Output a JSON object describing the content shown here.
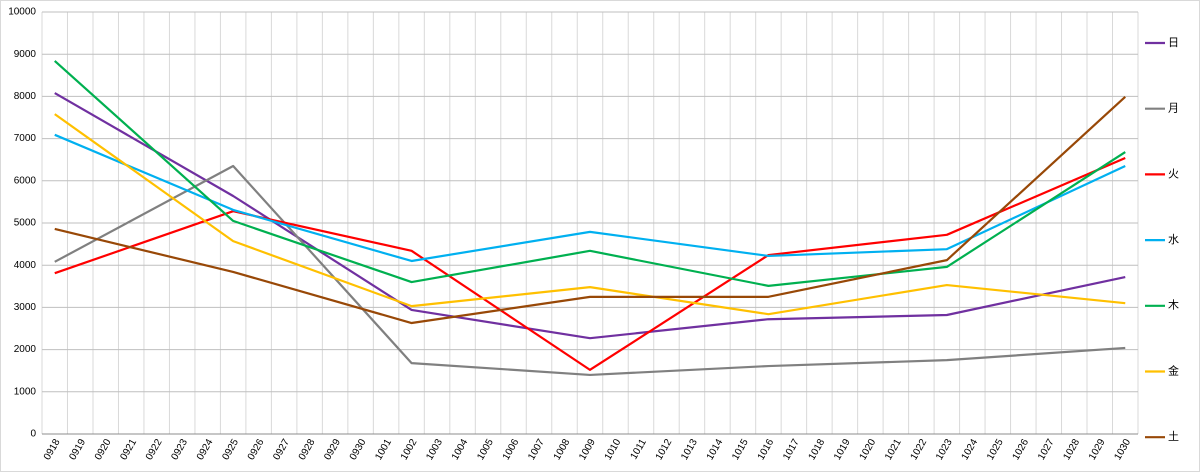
{
  "chart_data": {
    "type": "line",
    "categories": [
      "0918",
      "0919",
      "0920",
      "0921",
      "0922",
      "0923",
      "0924",
      "0925",
      "0926",
      "0927",
      "0928",
      "0929",
      "0930",
      "1001",
      "1002",
      "1003",
      "1004",
      "1005",
      "1006",
      "1007",
      "1008",
      "1009",
      "1010",
      "1011",
      "1012",
      "1013",
      "1014",
      "1015",
      "1016",
      "1017",
      "1018",
      "1019",
      "1020",
      "1021",
      "1022",
      "1023",
      "1024",
      "1025",
      "1026",
      "1027",
      "1028",
      "1029",
      "1030"
    ],
    "series": [
      {
        "name": "日",
        "color": "#7030a0",
        "values": [
          8080,
          null,
          null,
          null,
          null,
          null,
          null,
          5640,
          null,
          null,
          null,
          null,
          null,
          null,
          2940,
          null,
          null,
          null,
          null,
          null,
          null,
          2270,
          null,
          null,
          null,
          null,
          null,
          null,
          2720,
          null,
          null,
          null,
          null,
          null,
          null,
          2820,
          null,
          null,
          null,
          null,
          null,
          null,
          3720
        ]
      },
      {
        "name": "月",
        "color": "#808080",
        "values": [
          4080,
          null,
          null,
          null,
          null,
          null,
          null,
          6350,
          null,
          null,
          null,
          null,
          null,
          null,
          1680,
          null,
          null,
          null,
          null,
          null,
          null,
          1400,
          null,
          null,
          null,
          null,
          null,
          null,
          1610,
          null,
          null,
          null,
          null,
          null,
          null,
          1750,
          null,
          null,
          null,
          null,
          null,
          null,
          2040
        ]
      },
      {
        "name": "火",
        "color": "#ff0000",
        "values": [
          3810,
          null,
          null,
          null,
          null,
          null,
          null,
          5280,
          null,
          null,
          null,
          null,
          null,
          null,
          4340,
          null,
          null,
          null,
          null,
          null,
          null,
          1520,
          null,
          null,
          null,
          null,
          null,
          null,
          4240,
          null,
          null,
          null,
          null,
          null,
          null,
          4720,
          null,
          null,
          null,
          null,
          null,
          null,
          6540
        ]
      },
      {
        "name": "水",
        "color": "#00b0f0",
        "values": [
          7090,
          null,
          null,
          null,
          null,
          null,
          null,
          5310,
          null,
          null,
          null,
          null,
          null,
          null,
          4100,
          null,
          null,
          null,
          null,
          null,
          null,
          4790,
          null,
          null,
          null,
          null,
          null,
          null,
          4220,
          null,
          null,
          null,
          null,
          null,
          null,
          4380,
          null,
          null,
          null,
          null,
          null,
          null,
          6350
        ]
      },
      {
        "name": "木",
        "color": "#00b050",
        "values": [
          8840,
          null,
          null,
          null,
          null,
          null,
          null,
          5050,
          null,
          null,
          null,
          null,
          null,
          null,
          3600,
          null,
          null,
          null,
          null,
          null,
          null,
          4340,
          null,
          null,
          null,
          null,
          null,
          null,
          3510,
          null,
          null,
          null,
          null,
          null,
          null,
          3960,
          null,
          null,
          null,
          null,
          null,
          null,
          6680
        ]
      },
      {
        "name": "金",
        "color": "#ffc000",
        "values": [
          7580,
          null,
          null,
          null,
          null,
          null,
          null,
          4570,
          null,
          null,
          null,
          null,
          null,
          null,
          3030,
          null,
          null,
          null,
          null,
          null,
          null,
          3480,
          null,
          null,
          null,
          null,
          null,
          null,
          2840,
          null,
          null,
          null,
          null,
          null,
          null,
          3530,
          null,
          null,
          null,
          null,
          null,
          null,
          3100
        ]
      },
      {
        "name": "土",
        "color": "#984807",
        "values": [
          4860,
          null,
          null,
          null,
          null,
          null,
          null,
          3840,
          null,
          null,
          null,
          null,
          null,
          null,
          2630,
          null,
          null,
          null,
          null,
          null,
          null,
          3250,
          null,
          null,
          null,
          null,
          null,
          null,
          3250,
          null,
          null,
          null,
          null,
          null,
          null,
          4120,
          null,
          null,
          null,
          null,
          null,
          null,
          7990
        ]
      }
    ],
    "ylim": [
      0,
      10000
    ],
    "yticks": [
      0,
      1000,
      2000,
      3000,
      4000,
      5000,
      6000,
      7000,
      8000,
      9000,
      10000
    ],
    "grid": true,
    "connect_gaps": true,
    "legend": "right"
  }
}
